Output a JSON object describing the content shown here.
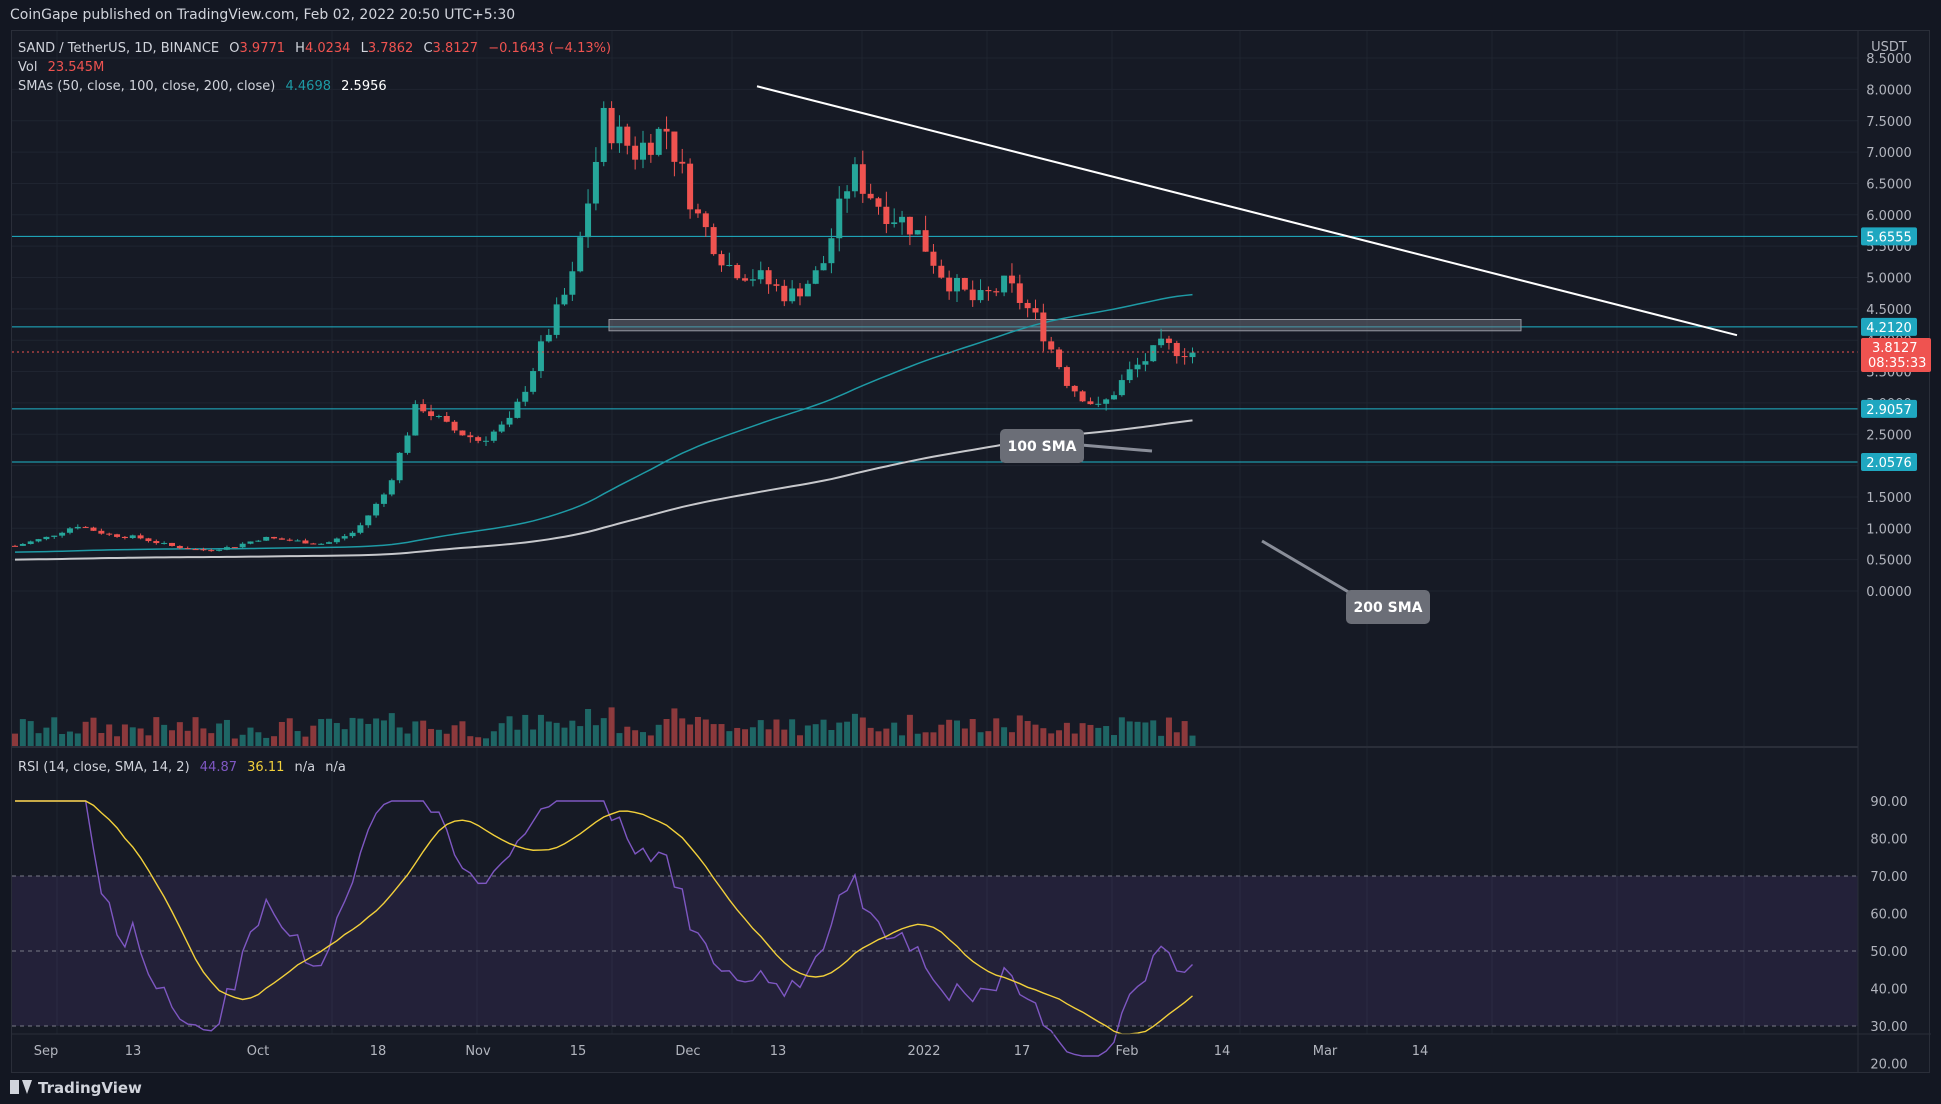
{
  "header": {
    "published": "CoinGape published on TradingView.com, Feb 02, 2022 20:50 UTC+5:30"
  },
  "footer": {
    "brand": "TradingView"
  },
  "legend": {
    "symbol": "SAND / TetherUS, 1D, BINANCE",
    "open_label": "O",
    "open": "3.9771",
    "high_label": "H",
    "high": "4.0234",
    "low_label": "L",
    "low": "3.7862",
    "close_label": "C",
    "close": "3.8127",
    "change": "−0.1643 (−4.13%)",
    "vol_label": "Vol",
    "vol": "23.545M",
    "sma_label": "SMAs (50, close, 100, close, 200, close)",
    "sma100": "4.4698",
    "sma200": "2.5956",
    "rsi_label": "RSI (14, close, SMA, 14, 2)",
    "rsi": "44.87",
    "rsi_sma": "36.11",
    "na1": "n/a",
    "na2": "n/a"
  },
  "colors": {
    "up": "#26a69a",
    "down": "#ef5350",
    "sma100": "#1e9aa5",
    "sma200": "#c7c8cc",
    "rsi": "#7e57c2",
    "rsi_sma": "#f2d03b",
    "level": "#1fb5c9"
  },
  "chart_data": {
    "type": "candlestick",
    "quote": "USDT",
    "price_axis": {
      "ticks": [
        "8.5000",
        "8.0000",
        "7.5000",
        "7.0000",
        "6.5000",
        "6.0000",
        "5.5000",
        "5.0000",
        "4.5000",
        "4.0000",
        "3.5000",
        "3.0000",
        "2.5000",
        "2.0000",
        "1.5000",
        "1.0000",
        "0.5000",
        "0.0000"
      ],
      "range": [
        0,
        8.7
      ]
    },
    "time_axis": {
      "labels": [
        "Sep",
        "13",
        "Oct",
        "18",
        "Nov",
        "15",
        "Dec",
        "13",
        "2022",
        "17",
        "Feb",
        "14",
        "Mar",
        "14"
      ]
    },
    "levels": [
      {
        "label": "5.6555",
        "value": 5.6555
      },
      {
        "label": "4.2120",
        "value": 4.212
      },
      {
        "label": "2.9057",
        "value": 2.9057
      },
      {
        "label": "2.0576",
        "value": 2.0576
      }
    ],
    "current_price": {
      "label": "3.8127",
      "countdown": "08:35:33",
      "value": 3.8127
    },
    "support_zone": {
      "from": 4.15,
      "to": 4.33
    },
    "trendline": {
      "from_price": 8.05,
      "to_price": 4.08
    },
    "annotations": [
      "100 SMA",
      "200 SMA"
    ],
    "sample_closes": [
      0.72,
      0.85,
      1.05,
      0.9,
      0.85,
      0.72,
      0.65,
      0.7,
      0.85,
      0.8,
      0.75,
      0.95,
      1.6,
      3.0,
      2.6,
      2.4,
      2.7,
      3.9,
      5.0,
      7.5,
      7.0,
      7.4,
      6.0,
      5.2,
      5.0,
      4.7,
      5.1,
      6.7,
      6.1,
      5.8,
      5.0,
      4.6,
      4.9,
      4.3,
      3.3,
      2.9,
      3.5,
      3.9,
      3.81
    ],
    "rsi_axis": {
      "ticks": [
        "90.00",
        "80.00",
        "70.00",
        "60.00",
        "50.00",
        "40.00",
        "30.00",
        "20.00"
      ],
      "range": [
        18,
        94
      ],
      "upper": 70,
      "mid": 50,
      "lower": 30
    }
  }
}
